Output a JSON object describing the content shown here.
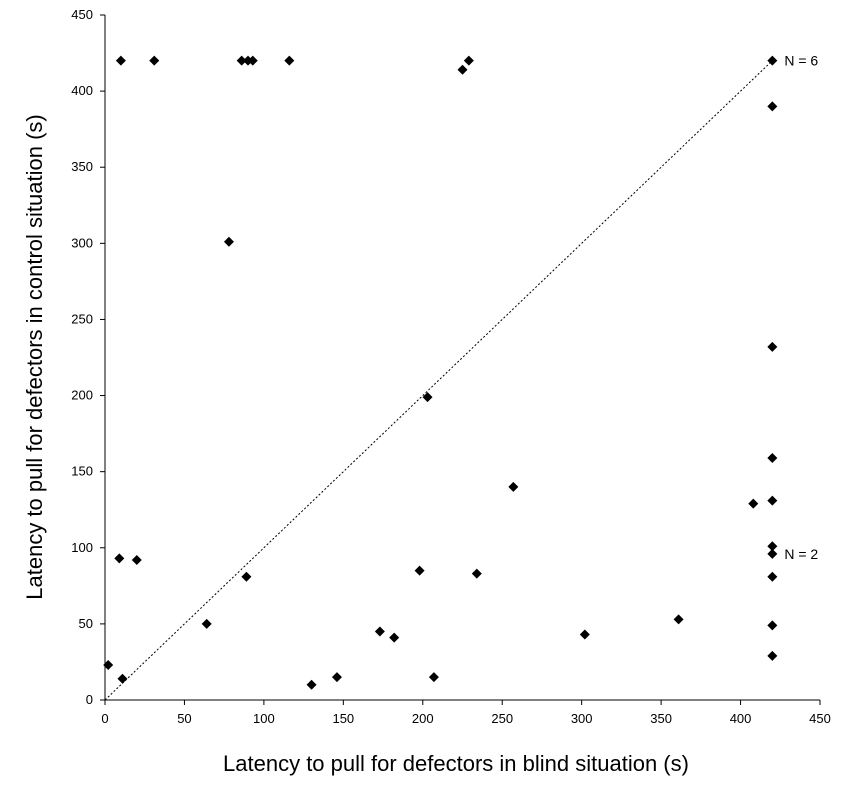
{
  "chart_data": {
    "type": "scatter",
    "title": "",
    "xlabel": "Latency to pull for defectors in blind situation (s)",
    "ylabel": "Latency to pull for defectors in control situation (s)",
    "xlim": [
      0,
      450
    ],
    "ylim": [
      0,
      450
    ],
    "x_ticks": [
      0,
      50,
      100,
      150,
      200,
      250,
      300,
      350,
      400,
      450
    ],
    "y_ticks": [
      0,
      50,
      100,
      150,
      200,
      250,
      300,
      350,
      400,
      450
    ],
    "x_tick_labels": [
      "0",
      "50",
      "100",
      "150",
      "200",
      "250",
      "300",
      "350",
      "400",
      "450"
    ],
    "y_tick_labels": [
      "0",
      "50",
      "100",
      "150",
      "200",
      "250",
      "300",
      "350",
      "400",
      "450"
    ],
    "grid": false,
    "legend": "none",
    "marker": "diamond",
    "marker_color": "#000000",
    "reference_line": {
      "type": "identity",
      "style": "dotted",
      "from": [
        0,
        0
      ],
      "to": [
        420,
        420
      ]
    },
    "series": [
      {
        "points": [
          [
            10,
            420
          ],
          [
            31,
            420
          ],
          [
            86,
            420
          ],
          [
            90,
            420
          ],
          [
            93,
            420
          ],
          [
            116,
            420
          ],
          [
            225,
            414
          ],
          [
            229,
            420
          ],
          [
            420,
            420
          ],
          [
            78,
            301
          ],
          [
            203,
            199
          ],
          [
            257,
            140
          ],
          [
            9,
            93
          ],
          [
            20,
            92
          ],
          [
            89,
            81
          ],
          [
            198,
            85
          ],
          [
            234,
            83
          ],
          [
            64,
            50
          ],
          [
            2,
            23
          ],
          [
            11,
            14
          ],
          [
            130,
            10
          ],
          [
            146,
            15
          ],
          [
            173,
            45
          ],
          [
            182,
            41
          ],
          [
            207,
            15
          ],
          [
            302,
            43
          ],
          [
            361,
            53
          ],
          [
            408,
            129
          ],
          [
            420,
            390
          ],
          [
            420,
            232
          ],
          [
            420,
            159
          ],
          [
            420,
            131
          ],
          [
            420,
            101
          ],
          [
            420,
            96
          ],
          [
            420,
            81
          ],
          [
            420,
            49
          ],
          [
            420,
            29
          ]
        ]
      }
    ],
    "annotations": [
      {
        "text": "N = 6",
        "x": 420,
        "y": 420
      },
      {
        "text": "N = 2",
        "x": 420,
        "y": 96
      }
    ]
  }
}
